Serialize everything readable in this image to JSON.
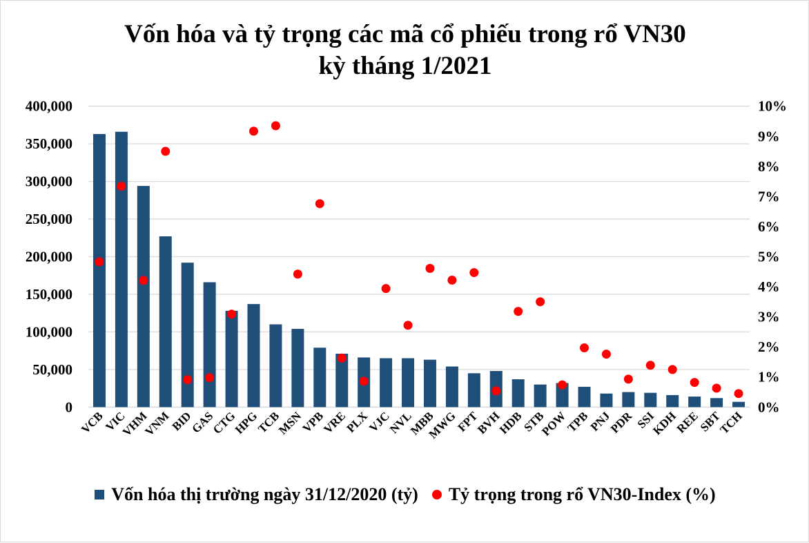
{
  "chart_data": {
    "type": "bar",
    "title_line1": "Vốn hóa và tỷ trọng các mã cổ phiếu trong rổ VN30",
    "title_line2": "kỳ tháng 1/2021",
    "categories": [
      "VCB",
      "VIC",
      "VHM",
      "VNM",
      "BID",
      "GAS",
      "CTG",
      "HPG",
      "TCB",
      "MSN",
      "VPB",
      "VRE",
      "PLX",
      "VJC",
      "NVL",
      "MBB",
      "MWG",
      "FPT",
      "BVH",
      "HDB",
      "STB",
      "POW",
      "TPB",
      "PNJ",
      "PDR",
      "SSI",
      "KDH",
      "REE",
      "SBT",
      "TCH"
    ],
    "series": [
      {
        "name": "Vốn hóa thị trường ngày 31/12/2020 (tỷ)",
        "type": "bar",
        "axis": "left",
        "color": "#1f4e79",
        "values": [
          363000,
          366000,
          294000,
          227000,
          192000,
          166000,
          128000,
          137000,
          110000,
          104000,
          79000,
          71000,
          66000,
          65000,
          65000,
          63000,
          54000,
          45000,
          48000,
          37000,
          30000,
          32000,
          27000,
          18000,
          20000,
          19000,
          16000,
          14000,
          12000,
          7000
        ]
      },
      {
        "name": "Tỷ trọng trong rổ VN30-Index (%)",
        "type": "scatter",
        "axis": "right",
        "color": "#ff0000",
        "values": [
          4.83,
          7.34,
          4.21,
          8.5,
          0.91,
          0.98,
          3.09,
          9.17,
          9.35,
          4.42,
          6.76,
          1.63,
          0.86,
          3.94,
          2.72,
          4.61,
          4.22,
          4.47,
          0.54,
          3.18,
          3.5,
          0.74,
          1.97,
          1.76,
          0.93,
          1.39,
          1.25,
          0.82,
          0.63,
          0.45
        ]
      }
    ],
    "ylim_left": [
      0,
      400000
    ],
    "ylim_right": [
      0,
      10
    ],
    "left_ticks": [
      "0",
      "50,000",
      "100,000",
      "150,000",
      "200,000",
      "250,000",
      "300,000",
      "350,000",
      "400,000"
    ],
    "right_ticks": [
      "0%",
      "1%",
      "2%",
      "3%",
      "4%",
      "5%",
      "6%",
      "7%",
      "8%",
      "9%",
      "10%"
    ],
    "grid": true,
    "legend_position": "bottom"
  }
}
